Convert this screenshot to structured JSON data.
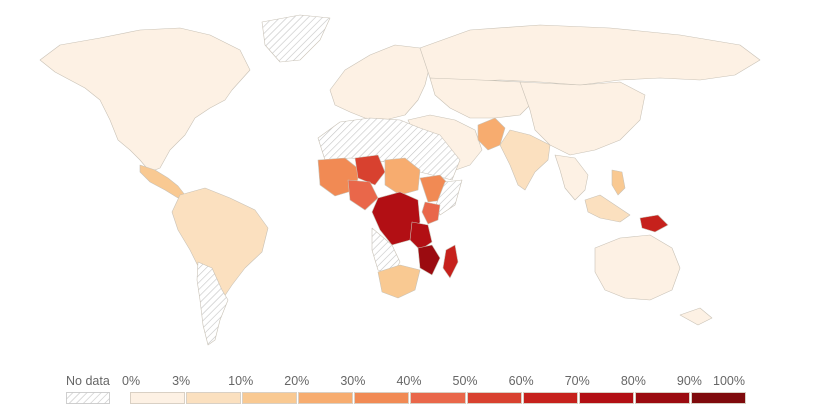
{
  "legend": {
    "no_data_label": "No data",
    "ticks": [
      "0%",
      "3%",
      "10%",
      "20%",
      "30%",
      "40%",
      "50%",
      "60%",
      "70%",
      "80%",
      "90%",
      "100%"
    ],
    "colors": [
      "#fdf1e4",
      "#fbe0bf",
      "#f9c992",
      "#f7ac6f",
      "#f18a54",
      "#e9674a",
      "#d8412f",
      "#c6211c",
      "#b20f14",
      "#9b0b10",
      "#7f0a0c"
    ],
    "no_data_pattern": "hatched-gray"
  },
  "map": {
    "projection": "world",
    "regions": [
      {
        "name": "North America",
        "bin": 0
      },
      {
        "name": "Greenland",
        "bin": "no-data"
      },
      {
        "name": "Europe",
        "bin": 0
      },
      {
        "name": "Russia",
        "bin": 0
      },
      {
        "name": "Middle East",
        "bin": 0
      },
      {
        "name": "Central Asia",
        "bin": 0
      },
      {
        "name": "East Asia",
        "bin": 0
      },
      {
        "name": "Southeast Asia",
        "bin": 0
      },
      {
        "name": "Philippines",
        "bin": 2
      },
      {
        "name": "Indonesia",
        "bin": 1
      },
      {
        "name": "Papua New Guinea",
        "bin": 7
      },
      {
        "name": "India",
        "bin": 1
      },
      {
        "name": "Pakistan",
        "bin": 3
      },
      {
        "name": "Australia",
        "bin": 0
      },
      {
        "name": "South America",
        "bin": 1
      },
      {
        "name": "Argentina & Chile",
        "bin": "no-data"
      },
      {
        "name": "Central America",
        "bin": 2
      },
      {
        "name": "North Africa",
        "bin": "no-data"
      },
      {
        "name": "Sahel West",
        "bin": 4
      },
      {
        "name": "Niger",
        "bin": 6
      },
      {
        "name": "Chad & Sudan",
        "bin": 3
      },
      {
        "name": "Nigeria",
        "bin": 5
      },
      {
        "name": "Ethiopia",
        "bin": 4
      },
      {
        "name": "Somalia",
        "bin": "no-data"
      },
      {
        "name": "Kenya",
        "bin": 5
      },
      {
        "name": "DR Congo",
        "bin": 8
      },
      {
        "name": "Tanzania",
        "bin": 8
      },
      {
        "name": "Mozambique",
        "bin": 9
      },
      {
        "name": "Madagascar",
        "bin": 7
      },
      {
        "name": "Angola & Namibia",
        "bin": "no-data"
      },
      {
        "name": "South Africa",
        "bin": 2
      },
      {
        "name": "Antarctic islands",
        "bin": 0
      }
    ]
  }
}
